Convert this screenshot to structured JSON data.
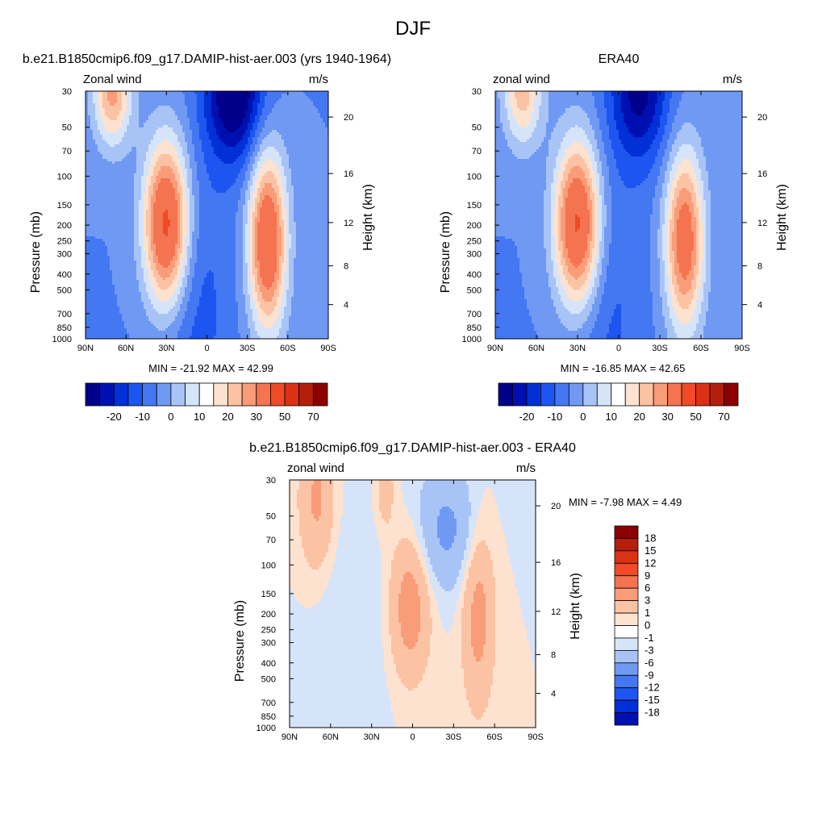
{
  "figure": {
    "title": "DJF"
  },
  "chart_data": [
    {
      "type": "heatmap",
      "panel": "model",
      "title": "b.e21.B1850cmip6.f09_g17.DAMIP-hist-aer.003 (yrs 1940-1964)",
      "left_label": "Zonal wind",
      "right_label": "m/s",
      "ylabel": "Pressure (mb)",
      "y2label": "Height (km)",
      "x_ticks": [
        "90N",
        "60N",
        "30N",
        "0",
        "30S",
        "60S",
        "90S"
      ],
      "x_values": [
        90,
        60,
        30,
        0,
        -30,
        -60,
        -90
      ],
      "y_ticks": [
        "30",
        "50",
        "70",
        "100",
        "150",
        "200",
        "250",
        "300",
        "400",
        "500",
        "700",
        "850",
        "1000"
      ],
      "y_values": [
        30,
        50,
        70,
        100,
        150,
        200,
        250,
        300,
        400,
        500,
        700,
        850,
        1000
      ],
      "y2_ticks": [
        "20",
        "16",
        "12",
        "8",
        "4"
      ],
      "y2_values": [
        20,
        16,
        12,
        8,
        4
      ],
      "ylim": [
        1000,
        30
      ],
      "xlim": [
        90,
        -90
      ],
      "log_y": true,
      "min_max": "MIN = -21.92  MAX =  42.99",
      "features": [
        {
          "lat": 30,
          "p": 200,
          "amp": 45,
          "wlat": 12,
          "wlnp": 0.85
        },
        {
          "lat": -45,
          "p": 250,
          "amp": 40,
          "wlat": 10,
          "wlnp": 0.9
        },
        {
          "lat": 70,
          "p": 30,
          "amp": 27,
          "wlat": 10,
          "wlnp": 0.55
        },
        {
          "lat": -20,
          "p": 30,
          "amp": -28,
          "wlat": 15,
          "wlnp": 0.7
        },
        {
          "lat": 12,
          "p": 600,
          "amp": -8,
          "wlat": 20,
          "wlnp": 1.5
        }
      ],
      "colorbar": {
        "orientation": "horizontal",
        "labels": [
          "-20",
          "-10",
          "0",
          "10",
          "20",
          "30",
          "50",
          "70"
        ]
      }
    },
    {
      "type": "heatmap",
      "panel": "observations",
      "title": "ERA40",
      "left_label": "zonal wind",
      "right_label": "m/s",
      "ylabel": "Pressure (mb)",
      "y2label": "Height (km)",
      "x_ticks": [
        "90N",
        "60N",
        "30N",
        "0",
        "30S",
        "60S",
        "90S"
      ],
      "x_values": [
        90,
        60,
        30,
        0,
        -30,
        -60,
        -90
      ],
      "y_ticks": [
        "30",
        "50",
        "70",
        "100",
        "150",
        "200",
        "250",
        "300",
        "400",
        "500",
        "700",
        "850",
        "1000"
      ],
      "y_values": [
        30,
        50,
        70,
        100,
        150,
        200,
        250,
        300,
        400,
        500,
        700,
        850,
        1000
      ],
      "y2_ticks": [
        "20",
        "16",
        "12",
        "8",
        "4"
      ],
      "y2_values": [
        20,
        16,
        12,
        8,
        4
      ],
      "ylim": [
        1000,
        30
      ],
      "xlim": [
        90,
        -90
      ],
      "log_y": true,
      "min_max": "MIN = -16.85  MAX =  42.65",
      "features": [
        {
          "lat": 30,
          "p": 200,
          "amp": 44,
          "wlat": 12,
          "wlnp": 0.85
        },
        {
          "lat": -48,
          "p": 250,
          "amp": 36,
          "wlat": 10,
          "wlnp": 0.9
        },
        {
          "lat": 70,
          "p": 30,
          "amp": 23,
          "wlat": 10,
          "wlnp": 0.55
        },
        {
          "lat": -15,
          "p": 30,
          "amp": -22,
          "wlat": 15,
          "wlnp": 0.7
        },
        {
          "lat": 12,
          "p": 600,
          "amp": -7,
          "wlat": 20,
          "wlnp": 1.5
        }
      ],
      "colorbar": {
        "orientation": "horizontal",
        "labels": [
          "-20",
          "-10",
          "0",
          "10",
          "20",
          "30",
          "50",
          "70"
        ]
      }
    },
    {
      "type": "heatmap",
      "panel": "difference",
      "title": "b.e21.B1850cmip6.f09_g17.DAMIP-hist-aer.003 - ERA40",
      "left_label": "zonal wind",
      "right_label": "m/s",
      "ylabel": "Pressure (mb)",
      "y2label": "Height (km)",
      "x_ticks": [
        "90N",
        "60N",
        "30N",
        "0",
        "30S",
        "60S",
        "90S"
      ],
      "x_values": [
        90,
        60,
        30,
        0,
        -30,
        -60,
        -90
      ],
      "y_ticks": [
        "30",
        "50",
        "70",
        "100",
        "150",
        "200",
        "250",
        "300",
        "400",
        "500",
        "700",
        "850",
        "1000"
      ],
      "y_values": [
        30,
        50,
        70,
        100,
        150,
        200,
        250,
        300,
        400,
        500,
        700,
        850,
        1000
      ],
      "y2_ticks": [
        "20",
        "16",
        "12",
        "8",
        "4"
      ],
      "y2_values": [
        20,
        16,
        12,
        8,
        4
      ],
      "ylim": [
        1000,
        30
      ],
      "xlim": [
        90,
        -90
      ],
      "log_y": true,
      "min_max": "MIN =  -7.98  MAX =   4.49",
      "features": [
        {
          "lat": 70,
          "p": 40,
          "amp": 3.5,
          "wlat": 9,
          "wlnp": 0.7
        },
        {
          "lat": 2,
          "p": 180,
          "amp": 4.5,
          "wlat": 10,
          "wlnp": 0.7
        },
        {
          "lat": -48,
          "p": 200,
          "amp": 4,
          "wlat": 8,
          "wlnp": 0.9
        },
        {
          "lat": -25,
          "p": 60,
          "amp": -3.5,
          "wlat": 16,
          "wlnp": 0.6
        },
        {
          "lat": 20,
          "p": 35,
          "amp": 2,
          "wlat": 5,
          "wlnp": 0.4
        },
        {
          "lat": 45,
          "p": 250,
          "amp": -0.9,
          "wlat": 20,
          "wlnp": 1.4
        }
      ],
      "colorbar": {
        "orientation": "vertical",
        "labels": [
          "18",
          "15",
          "12",
          "9",
          "6",
          "3",
          "1",
          "0",
          "-1",
          "-3",
          "-6",
          "-9",
          "-12",
          "-15",
          "-18"
        ]
      }
    }
  ]
}
